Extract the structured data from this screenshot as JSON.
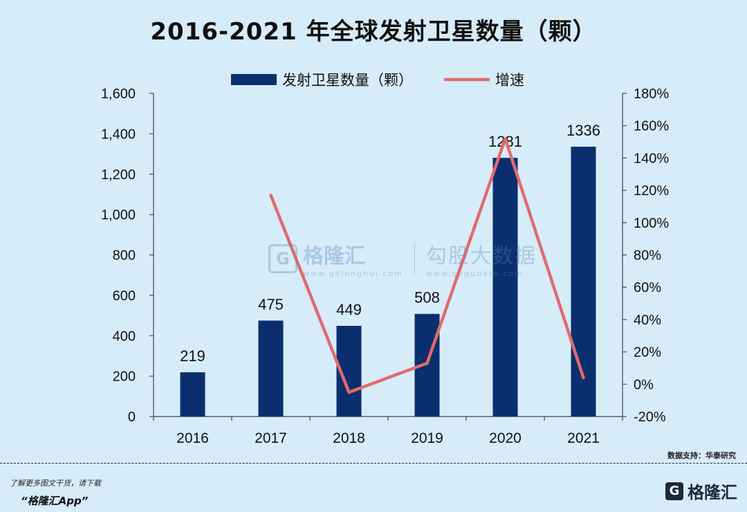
{
  "title": "2016-2021 年全球发射卫星数量（颗）",
  "chart_data": {
    "type": "bar",
    "categories": [
      "2016",
      "2017",
      "2018",
      "2019",
      "2020",
      "2021"
    ],
    "series": [
      {
        "name": "发射卫星数量（颗）",
        "type": "bar",
        "axis": "left",
        "color": "#0b2f6e",
        "values": [
          219,
          475,
          449,
          508,
          1281,
          1336
        ]
      },
      {
        "name": "增速",
        "type": "line",
        "axis": "right",
        "color": "#e06b6e",
        "values": [
          null,
          117,
          -5,
          13,
          152,
          4
        ]
      }
    ],
    "data_labels": [
      "219",
      "475",
      "449",
      "508",
      "1281",
      "1336"
    ],
    "ylim": [
      0,
      1600
    ],
    "y_ticks": [
      0,
      200,
      400,
      600,
      800,
      1000,
      1200,
      1400,
      1600
    ],
    "y_tick_labels": [
      "0",
      "200",
      "400",
      "600",
      "800",
      "1,000",
      "1,200",
      "1,400",
      "1,600"
    ],
    "y2lim": [
      -20,
      180
    ],
    "y2_ticks": [
      -20,
      0,
      20,
      40,
      60,
      80,
      100,
      120,
      140,
      160,
      180
    ],
    "y2_tick_labels": [
      "-20%",
      "0%",
      "20%",
      "40%",
      "60%",
      "80%",
      "100%",
      "120%",
      "140%",
      "160%",
      "180%"
    ],
    "legend_position": "top-center",
    "grid": false
  },
  "source": "数据支持：华泰研究",
  "footer": {
    "note": "了解更多图文干货，请下载",
    "app": "“格隆汇App”",
    "logo_mark": "G",
    "logo_name": "格隆汇"
  },
  "watermark": {
    "mark": "G",
    "name": "格隆汇",
    "url": "www.gelonghui.com",
    "name2": "勾股大数据",
    "url2": "www.gogudata.com"
  }
}
